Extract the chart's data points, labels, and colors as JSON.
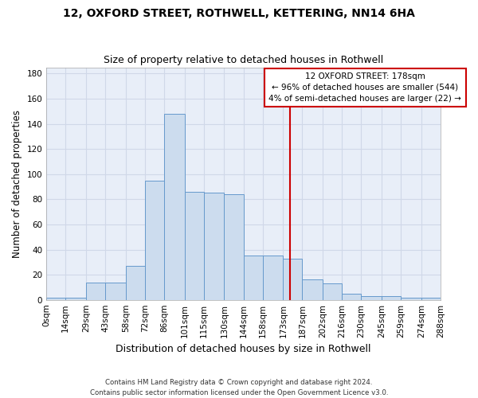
{
  "title_line1": "12, OXFORD STREET, ROTHWELL, KETTERING, NN14 6HA",
  "title_line2": "Size of property relative to detached houses in Rothwell",
  "xlabel": "Distribution of detached houses by size in Rothwell",
  "ylabel": "Number of detached properties",
  "bin_edges": [
    0,
    14,
    29,
    43,
    58,
    72,
    86,
    101,
    115,
    130,
    144,
    158,
    173,
    187,
    202,
    216,
    230,
    245,
    259,
    274,
    288
  ],
  "bar_heights": [
    2,
    2,
    14,
    14,
    27,
    95,
    148,
    86,
    85,
    84,
    35,
    35,
    33,
    16,
    13,
    5,
    3,
    3,
    2,
    2
  ],
  "bar_color": "#ccdcee",
  "bar_edge_color": "#6699cc",
  "grid_color": "#d0d8e8",
  "bg_color": "#e8eef8",
  "property_size": 178,
  "vline_color": "#cc0000",
  "annotation_text": "12 OXFORD STREET: 178sqm\n← 96% of detached houses are smaller (544)\n4% of semi-detached houses are larger (22) →",
  "annotation_box_color": "#cc0000",
  "ylim": [
    0,
    185
  ],
  "yticks": [
    0,
    20,
    40,
    60,
    80,
    100,
    120,
    140,
    160,
    180
  ],
  "footer_line1": "Contains HM Land Registry data © Crown copyright and database right 2024.",
  "footer_line2": "Contains public sector information licensed under the Open Government Licence v3.0."
}
